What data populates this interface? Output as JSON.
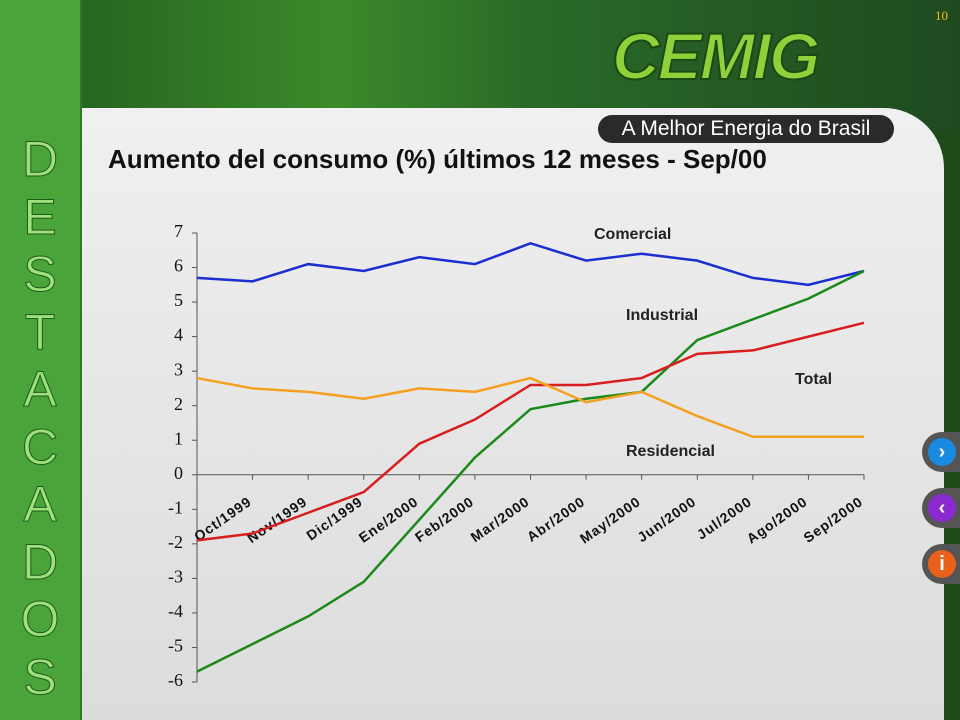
{
  "page_number": "10",
  "sidebar": {
    "letters": [
      "D",
      "E",
      "S",
      "T",
      "A",
      "C",
      "A",
      "D",
      "O",
      "S"
    ]
  },
  "brand": {
    "logo": "CEMIG",
    "tagline": "A Melhor Energia do Brasil"
  },
  "chart_data": {
    "type": "line",
    "title": "Aumento del consumo (%) últimos 12 meses - Sep/00",
    "categories": [
      null,
      "Oct/1999",
      "Nov/1999",
      "Dic/1999",
      "Ene/2000",
      "Feb/2000",
      "Mar/2000",
      "Abr/2000",
      "May/2000",
      "Jun/2000",
      "Jul/2000",
      "Ago/2000",
      "Sep/2000"
    ],
    "series": [
      {
        "name": "Comercial",
        "color": "#1a2fd0",
        "values": [
          5.7,
          5.6,
          6.1,
          5.9,
          6.3,
          6.1,
          6.7,
          6.2,
          6.4,
          6.2,
          5.7,
          5.5,
          5.9
        ]
      },
      {
        "name": "Industrial",
        "color": "#1a8a1a",
        "values": [
          -5.7,
          -4.9,
          -4.1,
          -3.1,
          -1.3,
          0.5,
          1.9,
          2.2,
          2.4,
          3.9,
          4.5,
          5.1,
          5.9
        ]
      },
      {
        "name": "Total",
        "color": "#d81e1e",
        "values": [
          -1.9,
          -1.7,
          -1.1,
          -0.5,
          0.9,
          1.6,
          2.6,
          2.6,
          2.8,
          3.5,
          3.6,
          4.0,
          4.4
        ]
      },
      {
        "name": "Residencial",
        "color": "#f5a020",
        "values": [
          2.8,
          2.5,
          2.4,
          2.2,
          2.5,
          2.4,
          2.8,
          2.1,
          2.4,
          1.7,
          1.1,
          1.1,
          1.1
        ]
      }
    ],
    "ylim": [
      -6,
      7
    ],
    "yticks": [
      -6,
      -5,
      -4,
      -3,
      -2,
      -1,
      0,
      1,
      2,
      3,
      4,
      5,
      6,
      7
    ]
  }
}
